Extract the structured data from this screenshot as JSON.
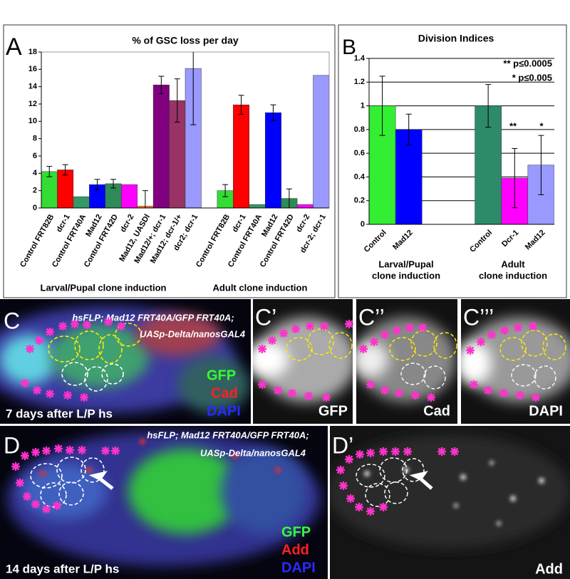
{
  "chart_data": [
    {
      "type": "bar",
      "panel_label": "A",
      "title": "% of GSC loss per day",
      "categories": [
        "Control FRT82B",
        "dcr-1",
        "Control FRT40A",
        "Mad12",
        "Control FRT42D",
        "dcr-2",
        "Mad12, UASDl",
        "Mad12/+; dcr-1",
        "Mad12; dcr-1/+",
        "dcr2; dcr-1",
        null,
        "Control FRT82B",
        "dcr-1",
        "Control FRT40A",
        "Mad12",
        "Control FRT42D",
        "dcr-2",
        "dcr-2; dcr-1"
      ],
      "values": [
        4.2,
        4.4,
        1.3,
        2.7,
        2.8,
        2.7,
        0.2,
        14.2,
        12.4,
        16.1,
        null,
        2.0,
        11.9,
        0.4,
        11.0,
        1.1,
        0.4,
        15.3
      ],
      "errors": [
        0.6,
        0.6,
        null,
        0.6,
        0.5,
        null,
        1.8,
        1.0,
        2.5,
        6.5,
        null,
        0.7,
        1.1,
        null,
        0.9,
        1.1,
        null,
        null
      ],
      "colors": [
        "#33dd33",
        "#ff0000",
        "#339966",
        "#0000ff",
        "#2e8b57",
        "#ff00ff",
        "#ff6600",
        "#800080",
        "#993366",
        "#9999ff",
        null,
        "#33dd33",
        "#ff0000",
        "#339966",
        "#0000ff",
        "#2e8b57",
        "#ff00ff",
        "#9999ff"
      ],
      "ylim": [
        0,
        18
      ],
      "yticks": [
        0,
        2,
        4,
        6,
        8,
        10,
        12,
        14,
        16,
        18
      ],
      "grid": false,
      "annotations": [
        "Larval/Pupal clone induction",
        "Adult clone induction"
      ]
    },
    {
      "type": "bar",
      "panel_label": "B",
      "title": "Division Indices",
      "categories": [
        "Control",
        "Mad12",
        null,
        null,
        "Control",
        "Dcr-1",
        "Mad12"
      ],
      "values": [
        1.0,
        0.8,
        null,
        null,
        1.0,
        0.39,
        0.5
      ],
      "errors": [
        0.25,
        0.13,
        null,
        null,
        0.18,
        0.25,
        0.25
      ],
      "colors": [
        "#33ee33",
        "#0000ff",
        null,
        null,
        "#2e8b6a",
        "#ff00ff",
        "#9999ff"
      ],
      "ylim": [
        0,
        1.4
      ],
      "yticks": [
        0,
        0.2,
        0.4,
        0.6,
        0.8,
        1,
        1.2,
        1.4
      ],
      "grid": true,
      "annotations": [
        "Larval/Pupal",
        "clone induction",
        "Adult",
        "clone induction",
        "** p≤0.0005",
        "* p≤0.005",
        "**",
        "*"
      ]
    }
  ],
  "panels": [
    {
      "label": "C",
      "texts": [
        "hsFLP; Mad12 FRT40A/GFP FRT40A;",
        "UASp-Delta/nanosGAL4",
        "GFP",
        "Cad",
        "DAPI",
        "7 days after L/P hs"
      ]
    },
    {
      "label": "C’",
      "texts": [
        "GFP"
      ]
    },
    {
      "label": "C’’",
      "texts": [
        "Cad"
      ]
    },
    {
      "label": "C’’’",
      "texts": [
        "DAPI"
      ]
    },
    {
      "label": "D",
      "texts": [
        "hsFLP; Mad12 FRT40A/GFP FRT40A;",
        "UASp-Delta/nanosGAL4",
        "GFP",
        "Add",
        "DAPI",
        "14 days after L/P hs"
      ]
    },
    {
      "label": "D’",
      "texts": [
        "Add"
      ]
    }
  ]
}
